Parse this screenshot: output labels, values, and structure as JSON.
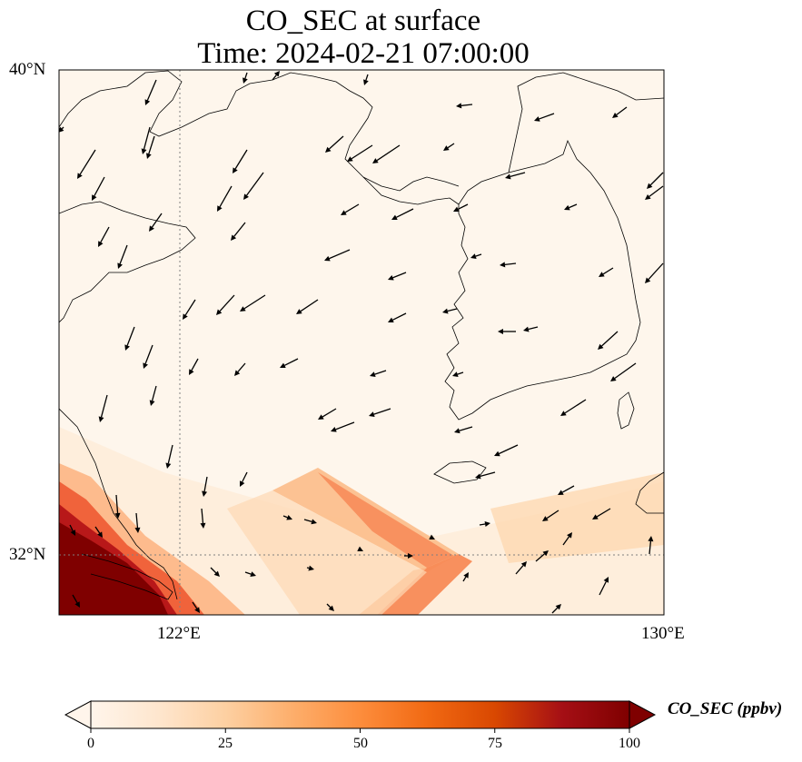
{
  "title": {
    "line1": "CO_SEC at surface",
    "line2": "Time: 2024-02-21 07:00:00"
  },
  "map": {
    "lat_ticks": [
      {
        "value": 40,
        "label": "40°N"
      },
      {
        "value": 32,
        "label": "32°N"
      }
    ],
    "lon_ticks": [
      {
        "value": 122,
        "label": "122°E"
      },
      {
        "value": 130,
        "label": "130°E"
      }
    ],
    "extent": {
      "lon_min": 120,
      "lon_max": 130,
      "lat_min": 31,
      "lat_max": 40
    },
    "gridlines": {
      "lon": [
        122
      ],
      "lat": [
        32
      ],
      "style": "dotted"
    },
    "plume_colors": {
      "low": "#fff5eb",
      "mid": "#fdae6b",
      "high": "#7f0000"
    }
  },
  "colorbar": {
    "label": "CO_SEC (ppbv)",
    "min": 0,
    "max": 100,
    "ticks": [
      "0",
      "25",
      "50",
      "75",
      "100"
    ],
    "extend": "both",
    "colormap": [
      "#fff5eb",
      "#fee6ce",
      "#fdd0a2",
      "#fdae6b",
      "#fd8d3c",
      "#f16913",
      "#d94801",
      "#a50f15",
      "#7f0000"
    ]
  }
}
